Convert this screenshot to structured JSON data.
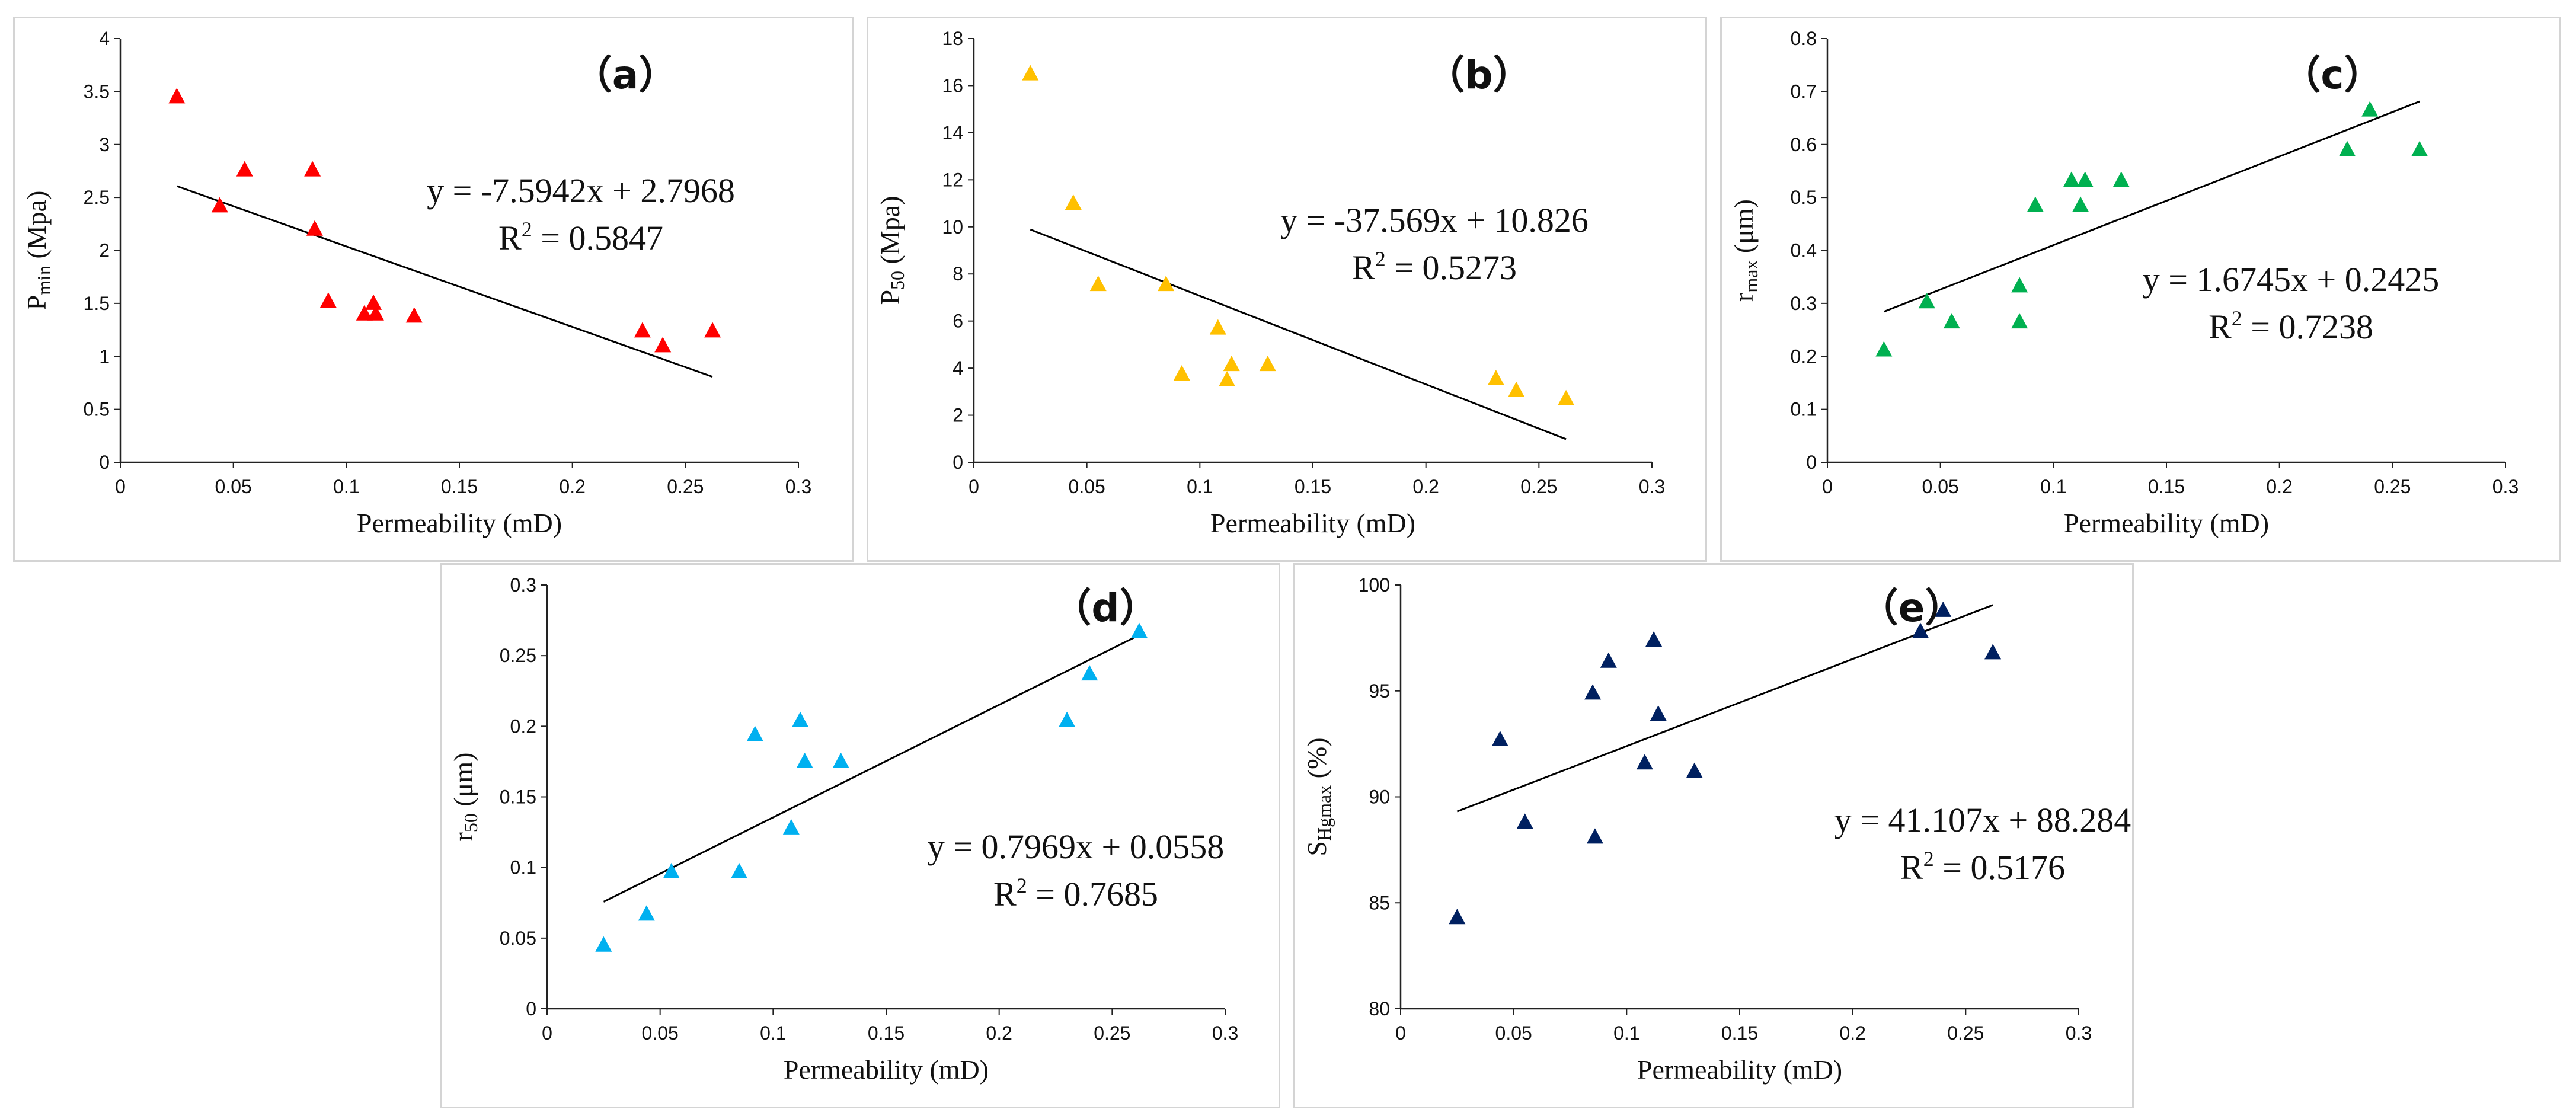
{
  "chart_data": [
    {
      "id": "a",
      "type": "scatter",
      "panel_label": "（a）",
      "xlabel": "Permeability (mD)",
      "ylabel_main": "P",
      "ylabel_sub": "min",
      "ylabel_rest": " (Mpa)",
      "xlim": [
        0,
        0.3
      ],
      "ylim": [
        0,
        4
      ],
      "xticks": [
        "0",
        "0.05",
        "0.1",
        "0.15",
        "0.2",
        "0.25",
        "0.3"
      ],
      "yticks": [
        "0",
        "0.5",
        "1",
        "1.5",
        "2",
        "2.5",
        "3",
        "3.5",
        "4"
      ],
      "color": "#ff0000",
      "points": [
        [
          0.025,
          3.45
        ],
        [
          0.044,
          2.42
        ],
        [
          0.055,
          2.76
        ],
        [
          0.085,
          2.76
        ],
        [
          0.086,
          2.2
        ],
        [
          0.092,
          1.52
        ],
        [
          0.108,
          1.4
        ],
        [
          0.112,
          1.5
        ],
        [
          0.113,
          1.4
        ],
        [
          0.13,
          1.38
        ],
        [
          0.231,
          1.24
        ],
        [
          0.24,
          1.1
        ],
        [
          0.262,
          1.24
        ]
      ],
      "trend": {
        "x": [
          0.025,
          0.262
        ],
        "slope": -7.5942,
        "intercept": 2.7968
      },
      "equation": "y = -7.5942x + 2.7968",
      "r2_prefix": "R",
      "r2_sup": "2",
      "r2_value": " = 0.5847"
    },
    {
      "id": "b",
      "type": "scatter",
      "panel_label": "（b）",
      "xlabel": "Permeability (mD)",
      "ylabel_main": "P",
      "ylabel_sub": "50",
      "ylabel_rest": " (Mpa)",
      "xlim": [
        0,
        0.3
      ],
      "ylim": [
        0,
        18
      ],
      "xticks": [
        "0",
        "0.05",
        "0.1",
        "0.15",
        "0.2",
        "0.25",
        "0.3"
      ],
      "yticks": [
        "0",
        "2",
        "4",
        "6",
        "8",
        "10",
        "12",
        "14",
        "16",
        "18"
      ],
      "color": "#ffc000",
      "points": [
        [
          0.025,
          16.5
        ],
        [
          0.044,
          11.0
        ],
        [
          0.055,
          7.55
        ],
        [
          0.085,
          7.55
        ],
        [
          0.092,
          3.75
        ],
        [
          0.108,
          5.7
        ],
        [
          0.112,
          3.5
        ],
        [
          0.114,
          4.15
        ],
        [
          0.13,
          4.15
        ],
        [
          0.231,
          3.55
        ],
        [
          0.24,
          3.05
        ],
        [
          0.262,
          2.7
        ]
      ],
      "trend": {
        "x": [
          0.025,
          0.262
        ],
        "slope": -37.569,
        "intercept": 10.826
      },
      "equation": "y = -37.569x + 10.826",
      "r2_prefix": "R",
      "r2_sup": "2",
      "r2_value": " = 0.5273"
    },
    {
      "id": "c",
      "type": "scatter",
      "panel_label": "（c）",
      "xlabel": "Permeability (mD)",
      "ylabel_main": "r",
      "ylabel_sub": "max",
      "ylabel_rest": " (μm)",
      "xlim": [
        0,
        0.3
      ],
      "ylim": [
        0,
        0.8
      ],
      "xticks": [
        "0",
        "0.05",
        "0.1",
        "0.15",
        "0.2",
        "0.25",
        "0.3"
      ],
      "yticks": [
        "0",
        "0.1",
        "0.2",
        "0.3",
        "0.4",
        "0.5",
        "0.6",
        "0.7",
        "0.8"
      ],
      "color": "#00b050",
      "points": [
        [
          0.025,
          0.212
        ],
        [
          0.044,
          0.303
        ],
        [
          0.055,
          0.265
        ],
        [
          0.085,
          0.333
        ],
        [
          0.085,
          0.265
        ],
        [
          0.092,
          0.485
        ],
        [
          0.108,
          0.532
        ],
        [
          0.112,
          0.485
        ],
        [
          0.114,
          0.532
        ],
        [
          0.13,
          0.532
        ],
        [
          0.23,
          0.59
        ],
        [
          0.24,
          0.665
        ],
        [
          0.262,
          0.59
        ]
      ],
      "trend": {
        "x": [
          0.025,
          0.262
        ],
        "slope": 1.6745,
        "intercept": 0.2425
      },
      "equation": "y = 1.6745x + 0.2425",
      "r2_prefix": "R",
      "r2_sup": "2",
      "r2_value": " = 0.7238"
    },
    {
      "id": "d",
      "type": "scatter",
      "panel_label": "（d）",
      "xlabel": "Permeability (mD)",
      "ylabel_main": "r",
      "ylabel_sub": "50",
      "ylabel_rest": " (μm)",
      "xlim": [
        0,
        0.3
      ],
      "ylim": [
        0,
        0.3
      ],
      "xticks": [
        "0",
        "0.05",
        "0.1",
        "0.15",
        "0.2",
        "0.25",
        "0.3"
      ],
      "yticks": [
        "0",
        "0.05",
        "0.1",
        "0.15",
        "0.2",
        "0.25",
        "0.3"
      ],
      "color": "#00b0f0",
      "points": [
        [
          0.025,
          0.045
        ],
        [
          0.044,
          0.067
        ],
        [
          0.055,
          0.097
        ],
        [
          0.085,
          0.097
        ],
        [
          0.092,
          0.194
        ],
        [
          0.108,
          0.128
        ],
        [
          0.112,
          0.204
        ],
        [
          0.114,
          0.175
        ],
        [
          0.13,
          0.175
        ],
        [
          0.23,
          0.204
        ],
        [
          0.24,
          0.237
        ],
        [
          0.262,
          0.267
        ]
      ],
      "trend": {
        "x": [
          0.025,
          0.262
        ],
        "slope": 0.7969,
        "intercept": 0.0558
      },
      "equation": "y = 0.7969x + 0.0558",
      "r2_prefix": "R",
      "r2_sup": "2",
      "r2_value": " = 0.7685"
    },
    {
      "id": "e",
      "type": "scatter",
      "panel_label": "（e）",
      "xlabel": "Permeability (mD)",
      "ylabel_main": "S",
      "ylabel_sub": "Hgmax",
      "ylabel_rest": " (%)",
      "xlim": [
        0,
        0.3
      ],
      "ylim": [
        80,
        100
      ],
      "xticks": [
        "0",
        "0.05",
        "0.1",
        "0.15",
        "0.2",
        "0.25",
        "0.3"
      ],
      "yticks": [
        "80",
        "85",
        "90",
        "95",
        "100"
      ],
      "color": "#002060",
      "points": [
        [
          0.025,
          84.3
        ],
        [
          0.044,
          92.7
        ],
        [
          0.055,
          88.8
        ],
        [
          0.085,
          94.9
        ],
        [
          0.086,
          88.1
        ],
        [
          0.092,
          96.4
        ],
        [
          0.108,
          91.6
        ],
        [
          0.112,
          97.4
        ],
        [
          0.114,
          93.9
        ],
        [
          0.13,
          91.2
        ],
        [
          0.23,
          97.8
        ],
        [
          0.24,
          98.8
        ],
        [
          0.262,
          96.8
        ]
      ],
      "trend": {
        "x": [
          0.025,
          0.262
        ],
        "slope": 41.107,
        "intercept": 88.284
      },
      "equation": "y = 41.107x + 88.284",
      "r2_prefix": "R",
      "r2_sup": "2",
      "r2_value": " = 0.5176"
    }
  ]
}
